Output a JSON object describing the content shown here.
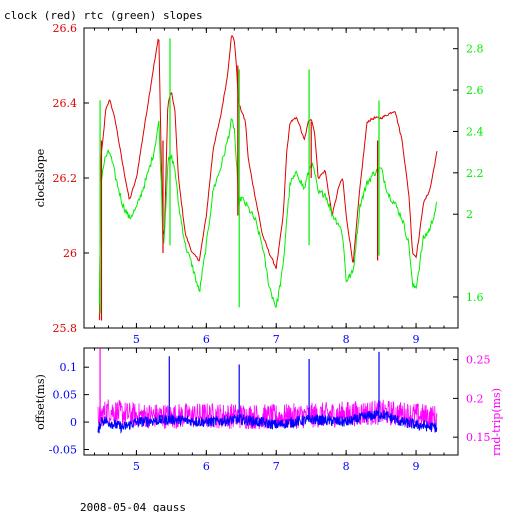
{
  "figure": {
    "title": "clock (red) rtc (green) slopes",
    "footer": "2008-05-04 gauss"
  },
  "colors": {
    "red": "#dd0000",
    "green": "#00ee00",
    "blue": "#0000ff",
    "magenta": "#ff00ff",
    "frame": "#000000"
  },
  "chart_data": [
    {
      "type": "line",
      "panel": "top",
      "ylabel": "clockslope",
      "xlim": [
        4.25,
        9.6
      ],
      "ylim_left": [
        25.8,
        26.6
      ],
      "ylim_right": [
        1.45,
        2.9
      ],
      "x_ticks": [
        5,
        6,
        7,
        8,
        9
      ],
      "left_ticks": [
        25.8,
        26,
        26.2,
        26.4,
        26.6
      ],
      "right_ticks": [
        1.6,
        2,
        2.2,
        2.4,
        2.6,
        2.8
      ],
      "grid": false,
      "series": [
        {
          "color": "red",
          "axis": "left",
          "x": [
            4.47,
            4.49,
            4.52,
            4.56,
            4.62,
            4.7,
            4.8,
            4.9,
            5.0,
            5.15,
            5.25,
            5.32,
            5.36,
            5.38,
            5.4,
            5.45,
            5.5,
            5.55,
            5.6,
            5.7,
            5.8,
            5.9,
            6.0,
            6.1,
            6.2,
            6.3,
            6.36,
            6.4,
            6.43,
            6.46,
            6.5,
            6.56,
            6.6,
            6.7,
            6.8,
            6.9,
            7.0,
            7.1,
            7.15,
            7.2,
            7.3,
            7.4,
            7.46,
            7.5,
            7.55,
            7.6,
            7.7,
            7.8,
            7.9,
            7.95,
            8.0,
            8.1,
            8.2,
            8.3,
            8.4,
            8.5,
            8.6,
            8.7,
            8.8,
            8.9,
            8.95,
            9.0,
            9.05,
            9.1,
            9.2,
            9.3
          ],
          "y": [
            25.82,
            26.25,
            26.3,
            26.38,
            26.41,
            26.35,
            26.24,
            26.14,
            26.2,
            26.38,
            26.5,
            26.58,
            26.2,
            26.05,
            26.05,
            26.4,
            26.43,
            26.38,
            26.2,
            26.05,
            26.0,
            25.98,
            26.1,
            26.28,
            26.36,
            26.47,
            26.58,
            26.57,
            26.5,
            26.4,
            26.38,
            26.35,
            26.25,
            26.15,
            26.05,
            26.0,
            25.96,
            26.1,
            26.27,
            26.35,
            26.36,
            26.3,
            26.35,
            26.36,
            26.32,
            26.2,
            26.22,
            26.1,
            26.18,
            26.2,
            26.1,
            25.97,
            26.18,
            26.35,
            26.36,
            26.36,
            26.37,
            26.38,
            26.3,
            26.15,
            26.0,
            25.99,
            26.05,
            26.13,
            26.17,
            26.27
          ]
        },
        {
          "color": "green",
          "axis": "right",
          "x": [
            4.47,
            4.49,
            4.52,
            4.56,
            4.62,
            4.7,
            4.8,
            4.9,
            5.0,
            5.15,
            5.25,
            5.32,
            5.36,
            5.38,
            5.4,
            5.45,
            5.5,
            5.55,
            5.6,
            5.7,
            5.8,
            5.9,
            6.0,
            6.1,
            6.2,
            6.3,
            6.36,
            6.4,
            6.43,
            6.46,
            6.5,
            6.56,
            6.6,
            6.7,
            6.8,
            6.9,
            7.0,
            7.1,
            7.15,
            7.2,
            7.3,
            7.4,
            7.46,
            7.5,
            7.55,
            7.6,
            7.7,
            7.8,
            7.9,
            7.95,
            8.0,
            8.1,
            8.2,
            8.3,
            8.4,
            8.5,
            8.6,
            8.7,
            8.8,
            8.9,
            8.95,
            9.0,
            9.05,
            9.1,
            9.2,
            9.3
          ],
          "y": [
            1.55,
            2.15,
            2.22,
            2.28,
            2.3,
            2.18,
            2.05,
            1.98,
            2.03,
            2.18,
            2.3,
            2.45,
            2.1,
            1.85,
            1.9,
            2.25,
            2.28,
            2.22,
            2.05,
            1.85,
            1.75,
            1.62,
            1.85,
            2.12,
            2.22,
            2.35,
            2.45,
            2.42,
            2.25,
            2.05,
            2.08,
            2.05,
            2.03,
            1.97,
            1.85,
            1.65,
            1.55,
            1.75,
            1.98,
            2.15,
            2.2,
            2.12,
            2.2,
            2.25,
            2.2,
            2.1,
            2.1,
            2.0,
            1.95,
            1.9,
            1.68,
            1.72,
            2.05,
            2.15,
            2.2,
            2.22,
            2.1,
            2.05,
            1.98,
            1.85,
            1.65,
            1.65,
            1.75,
            1.88,
            1.93,
            2.05
          ]
        }
      ],
      "spikes": [
        {
          "x": 4.5,
          "color": "red",
          "from": 25.82,
          "to": 26.3
        },
        {
          "x": 5.38,
          "color": "red",
          "from": 26.0,
          "to": 26.3
        },
        {
          "x": 6.45,
          "color": "red",
          "from": 26.1,
          "to": 26.5
        },
        {
          "x": 7.5,
          "color": "red",
          "from": 26.2,
          "to": 26.35
        },
        {
          "x": 8.45,
          "color": "red",
          "from": 25.98,
          "to": 26.3
        },
        {
          "x": 4.48,
          "color": "green",
          "from": 1.52,
          "to": 2.55
        },
        {
          "x": 5.48,
          "color": "green",
          "from": 1.85,
          "to": 2.85
        },
        {
          "x": 6.47,
          "color": "green",
          "from": 1.55,
          "to": 2.7
        },
        {
          "x": 7.47,
          "color": "green",
          "from": 1.85,
          "to": 2.7
        },
        {
          "x": 8.47,
          "color": "green",
          "from": 1.8,
          "to": 2.55
        }
      ]
    },
    {
      "type": "line",
      "panel": "bottom",
      "ylabel": "offset(ms)",
      "y2label": "rnd-trip(ms)",
      "xlim": [
        4.25,
        9.6
      ],
      "ylim_left": [
        -0.06,
        0.135
      ],
      "ylim_right": [
        0.127,
        0.265
      ],
      "x_ticks": [
        5,
        6,
        7,
        8,
        9
      ],
      "left_ticks": [
        -0.05,
        0,
        0.05,
        0.1
      ],
      "right_ticks": [
        0.15,
        0.2,
        0.25
      ],
      "grid": false,
      "series": [
        {
          "color": "magenta",
          "axis": "right",
          "x": [
            4.45,
            4.6,
            4.8,
            5.0,
            5.5,
            6.0,
            6.5,
            7.0,
            7.5,
            8.0,
            8.5,
            9.0,
            9.3
          ],
          "y": [
            0.175,
            0.185,
            0.18,
            0.178,
            0.177,
            0.178,
            0.177,
            0.176,
            0.178,
            0.18,
            0.182,
            0.178,
            0.175
          ]
        },
        {
          "color": "blue",
          "axis": "left",
          "x": [
            4.45,
            4.5,
            4.6,
            4.8,
            5.0,
            5.5,
            6.0,
            6.5,
            7.0,
            7.5,
            8.0,
            8.3,
            8.5,
            8.8,
            9.0,
            9.3
          ],
          "y": [
            -0.02,
            0.005,
            0.0,
            -0.01,
            0.0,
            0.005,
            0.0,
            0.005,
            -0.005,
            0.005,
            0.0,
            0.01,
            0.015,
            0.0,
            -0.005,
            -0.01
          ]
        }
      ],
      "spikes": [
        {
          "x": 4.48,
          "color": "magenta",
          "from": 0.17,
          "to": 0.265
        },
        {
          "x": 5.47,
          "color": "blue",
          "from": 0.0,
          "to": 0.12
        },
        {
          "x": 6.47,
          "color": "blue",
          "from": 0.0,
          "to": 0.105
        },
        {
          "x": 7.47,
          "color": "blue",
          "from": 0.0,
          "to": 0.115
        },
        {
          "x": 8.47,
          "color": "blue",
          "from": 0.0,
          "to": 0.128
        }
      ]
    }
  ]
}
